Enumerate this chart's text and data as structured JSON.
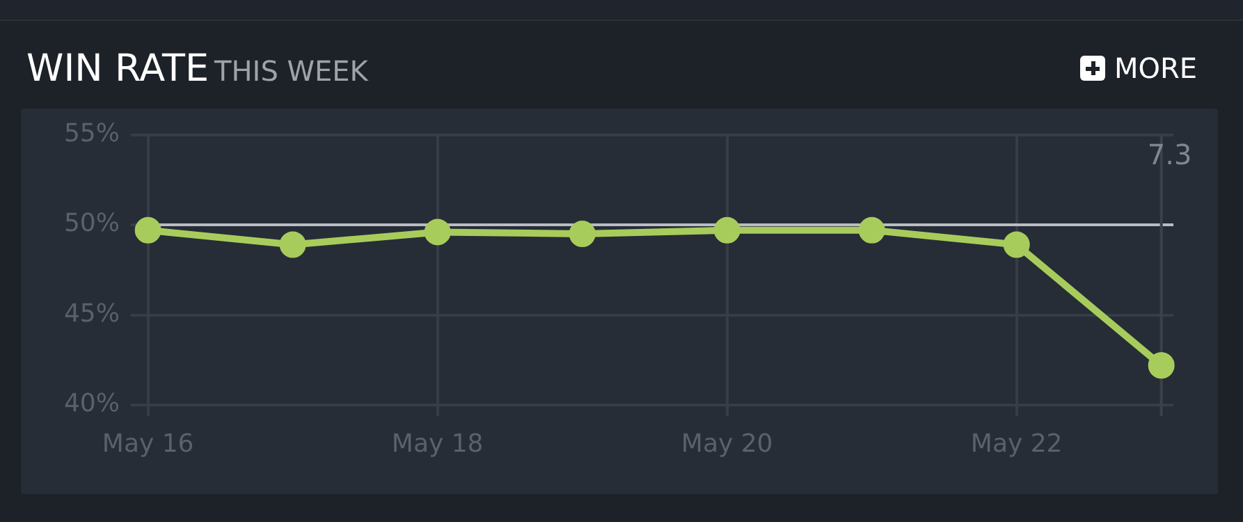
{
  "chart_data": {
    "type": "line",
    "title": "WIN RATE",
    "subtitle": "THIS WEEK",
    "annotations": [
      "MORE"
    ],
    "x": [
      "--05-16",
      "--05-17",
      "--05-18",
      "--05-19",
      "--05-20",
      "--05-21",
      "--05-22",
      "--05-23"
    ],
    "series": [
      {
        "color": "#a8cc5c",
        "values": [
          49.7,
          48.9,
          49.6,
          49.5,
          49.7,
          49.7,
          48.9,
          42.2
        ]
      }
    ],
    "xlim": [
      "--05-15T23:00",
      "--05-23T02:00"
    ],
    "xticks": [
      {
        "value": "--05-16",
        "label": "May 16"
      },
      {
        "value": "--05-18",
        "label": "May 18"
      },
      {
        "value": "--05-20",
        "label": "May 20"
      },
      {
        "value": "--05-22",
        "label": "May 22"
      }
    ],
    "ylim": [
      40,
      55
    ],
    "yticks": [
      {
        "value": 40,
        "label": "40%"
      },
      {
        "value": 45,
        "label": "45%"
      },
      {
        "value": 50,
        "label": "50%"
      },
      {
        "value": 55,
        "label": "55%"
      }
    ],
    "ref_lines": [
      {
        "axis": "y",
        "value": 50,
        "color": "#b9bdc3"
      },
      {
        "axis": "x",
        "value": "--05-23",
        "label": "7.3",
        "color": "#3b414a"
      }
    ],
    "grid": true,
    "legend": false,
    "marker": "circle",
    "line_style": "solid"
  }
}
